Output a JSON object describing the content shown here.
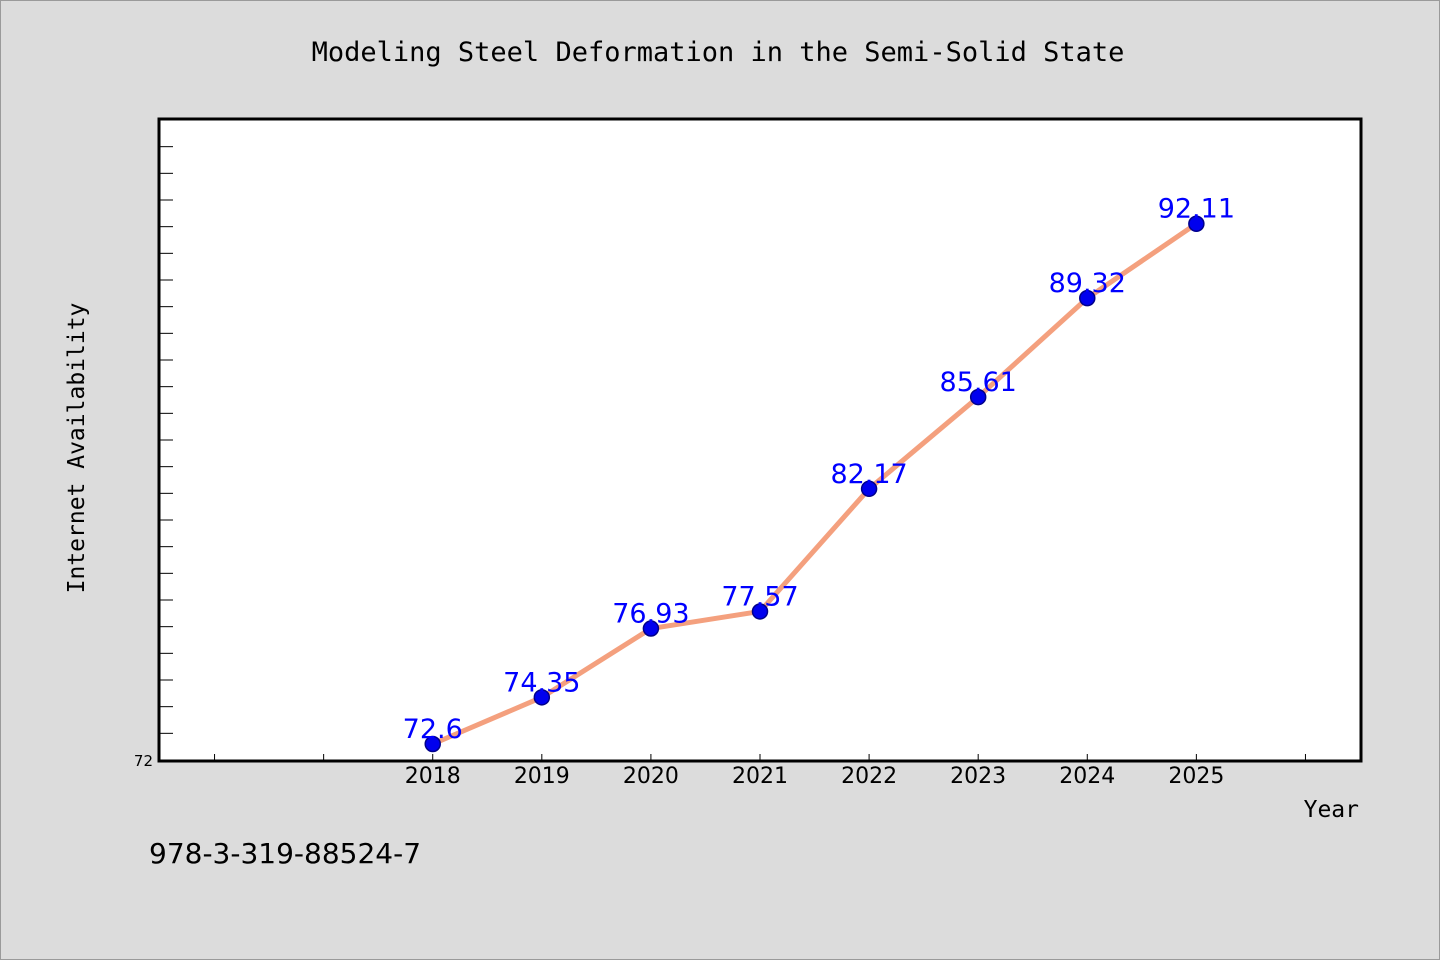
{
  "chart_data": {
    "type": "line",
    "title": "Modeling Steel Deformation in the Semi-Solid State",
    "xlabel": "Year",
    "ylabel": "Internet Availability",
    "categories": [
      "2018",
      "2019",
      "2020",
      "2021",
      "2022",
      "2023",
      "2024",
      "2025"
    ],
    "x_range": [
      2015.5,
      2026.5
    ],
    "values": [
      72.6,
      74.35,
      76.93,
      77.57,
      82.17,
      85.61,
      89.32,
      92.11
    ],
    "data_labels": [
      "72.6",
      "74.35",
      "76.93",
      "77.57",
      "82.17",
      "85.61",
      "89.32",
      "92.11"
    ],
    "ylim": [
      72,
      96
    ],
    "y_tick_labels": [
      "72"
    ],
    "grid": false,
    "legend": "none",
    "colors": {
      "line": "#f4a07e",
      "marker": "#0000ee",
      "marker_edge": "#00008b",
      "data_label": "#0000ff",
      "background": "#dcdcdc",
      "plot_area": "#ffffff"
    }
  },
  "footer_code": "978-3-319-88524-7"
}
